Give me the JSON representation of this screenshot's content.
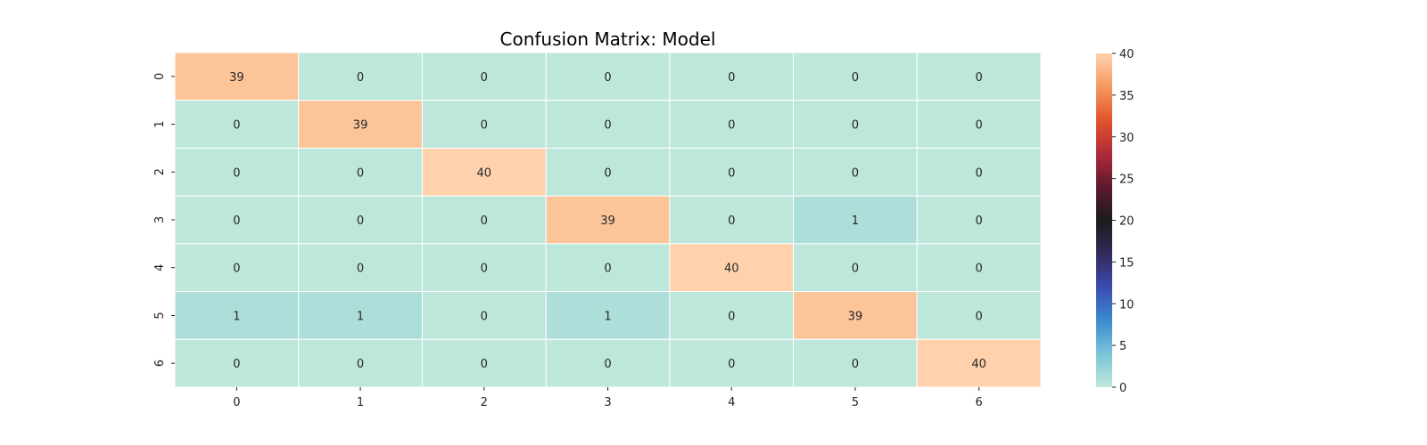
{
  "chart_data": {
    "type": "heatmap",
    "title": "Confusion Matrix: Model",
    "x_categories": [
      "0",
      "1",
      "2",
      "3",
      "4",
      "5",
      "6"
    ],
    "y_categories": [
      "0",
      "1",
      "2",
      "3",
      "4",
      "5",
      "6"
    ],
    "values": [
      [
        39,
        0,
        0,
        0,
        0,
        0,
        0
      ],
      [
        0,
        39,
        0,
        0,
        0,
        0,
        0
      ],
      [
        0,
        0,
        40,
        0,
        0,
        0,
        0
      ],
      [
        0,
        0,
        0,
        39,
        0,
        1,
        0
      ],
      [
        0,
        0,
        0,
        0,
        40,
        0,
        0
      ],
      [
        1,
        1,
        0,
        1,
        0,
        39,
        0
      ],
      [
        0,
        0,
        0,
        0,
        0,
        0,
        40
      ]
    ],
    "annotate": true,
    "colorbar": {
      "min": 0,
      "max": 40,
      "ticks": [
        "0",
        "5",
        "10",
        "15",
        "20",
        "25",
        "30",
        "35",
        "40"
      ]
    },
    "colormap": "icefire",
    "colormap_stops": [
      "#bde7db",
      "#7bc4d8",
      "#3a8bd0",
      "#3b4bb2",
      "#332a59",
      "#1b1b1f",
      "#5c1a2e",
      "#b12a3a",
      "#e2542b",
      "#f49a5e",
      "#ffd2ad"
    ],
    "cell_border_color": "#ffffff",
    "grid": false
  }
}
